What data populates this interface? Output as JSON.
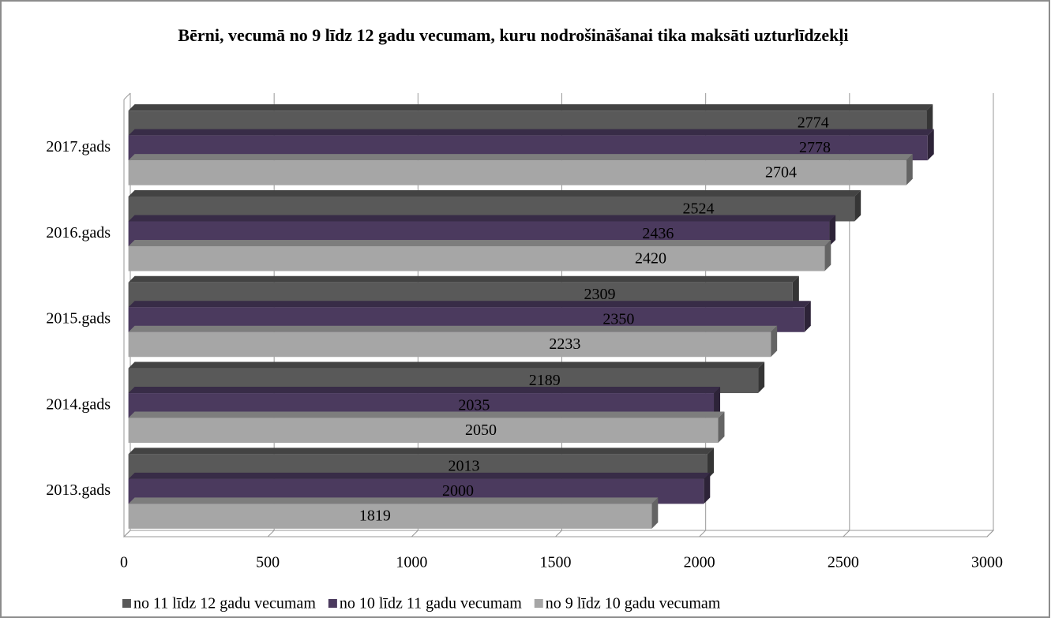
{
  "chart_data": {
    "type": "bar3d_horizontal",
    "title": "Bērni, vecumā no 9 līdz 12 gadu vecumam, kuru nodrošināšanai tika maksāti uzturlīdzekļi",
    "categories": [
      "2017.gads",
      "2016.gads",
      "2015.gads",
      "2014.gads",
      "2013.gads"
    ],
    "series": [
      {
        "name": "no 11 līdz 12 gadu vecumam",
        "color": "#595959",
        "values": [
          2774,
          2524,
          2309,
          2189,
          2013
        ]
      },
      {
        "name": "no 10 līdz 11 gadu vecumam",
        "color": "#4b3a5e",
        "values": [
          2778,
          2436,
          2350,
          2035,
          2000
        ]
      },
      {
        "name": "no 9 līdz 10 gadu vecumam",
        "color": "#a6a6a6",
        "values": [
          2704,
          2420,
          2233,
          2050,
          1819
        ]
      }
    ],
    "xlim": [
      0,
      3000
    ],
    "xticks": [
      0,
      500,
      1000,
      1500,
      2000,
      2500,
      3000
    ],
    "grid": true,
    "legend": "bottom"
  }
}
